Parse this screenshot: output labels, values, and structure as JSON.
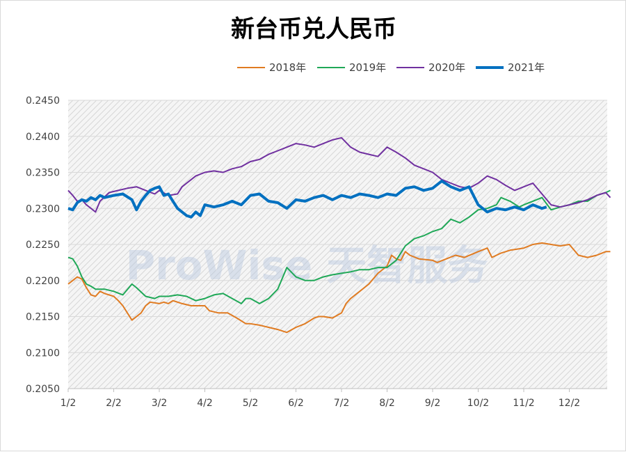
{
  "chart_data": {
    "type": "line",
    "title": "新台币兑人民币",
    "ylim": [
      0.205,
      0.245
    ],
    "y_ticks": [
      "0.2450",
      "0.2400",
      "0.2350",
      "0.2300",
      "0.2250",
      "0.2200",
      "0.2150",
      "0.2100",
      "0.2050"
    ],
    "x_ticks": [
      "1/2",
      "2/2",
      "3/2",
      "4/2",
      "5/2",
      "6/2",
      "7/2",
      "8/2",
      "9/2",
      "10/2",
      "11/2",
      "12/2"
    ],
    "legend_position": "top-right",
    "grid": true,
    "watermark": "ProWise 天智服务",
    "x_range": [
      1,
      12.9
    ],
    "series": [
      {
        "name": "2018年",
        "color": "#e07b21",
        "width": 2,
        "x": [
          1.0,
          1.1,
          1.2,
          1.3,
          1.4,
          1.5,
          1.6,
          1.7,
          1.8,
          2.0,
          2.1,
          2.2,
          2.3,
          2.4,
          2.5,
          2.6,
          2.7,
          2.8,
          3.0,
          3.1,
          3.2,
          3.3,
          3.5,
          3.7,
          4.0,
          4.1,
          4.3,
          4.5,
          4.7,
          4.9,
          5.0,
          5.2,
          5.4,
          5.6,
          5.8,
          6.0,
          6.2,
          6.4,
          6.5,
          6.6,
          6.8,
          7.0,
          7.1,
          7.2,
          7.4,
          7.6,
          7.8,
          8.0,
          8.1,
          8.2,
          8.3,
          8.4,
          8.5,
          8.7,
          9.0,
          9.1,
          9.3,
          9.5,
          9.7,
          10.0,
          10.2,
          10.3,
          10.5,
          10.7,
          11.0,
          11.2,
          11.4,
          11.6,
          11.8,
          12.0,
          12.2,
          12.4,
          12.6,
          12.8,
          12.9
        ],
        "values": [
          0.2195,
          0.22,
          0.2205,
          0.2202,
          0.219,
          0.218,
          0.2178,
          0.2185,
          0.2182,
          0.2178,
          0.2172,
          0.2165,
          0.2155,
          0.2145,
          0.215,
          0.2155,
          0.2165,
          0.217,
          0.2168,
          0.217,
          0.2168,
          0.2172,
          0.2168,
          0.2165,
          0.2165,
          0.2158,
          0.2155,
          0.2155,
          0.2148,
          0.214,
          0.214,
          0.2138,
          0.2135,
          0.2132,
          0.2128,
          0.2135,
          0.214,
          0.2148,
          0.215,
          0.215,
          0.2148,
          0.2155,
          0.2168,
          0.2175,
          0.2185,
          0.2195,
          0.221,
          0.222,
          0.2235,
          0.223,
          0.2228,
          0.224,
          0.2235,
          0.223,
          0.2228,
          0.2225,
          0.223,
          0.2235,
          0.2232,
          0.224,
          0.2245,
          0.2232,
          0.2238,
          0.2242,
          0.2245,
          0.225,
          0.2252,
          0.225,
          0.2248,
          0.225,
          0.2235,
          0.2232,
          0.2235,
          0.224,
          0.224
        ]
      },
      {
        "name": "2019年",
        "color": "#1fa857",
        "width": 2,
        "x": [
          1.0,
          1.1,
          1.2,
          1.3,
          1.4,
          1.5,
          1.6,
          1.8,
          2.0,
          2.2,
          2.4,
          2.5,
          2.7,
          2.9,
          3.0,
          3.2,
          3.4,
          3.6,
          3.8,
          4.0,
          4.2,
          4.4,
          4.6,
          4.8,
          4.9,
          5.0,
          5.2,
          5.4,
          5.6,
          5.8,
          6.0,
          6.2,
          6.4,
          6.6,
          6.8,
          7.0,
          7.2,
          7.4,
          7.6,
          7.8,
          8.0,
          8.2,
          8.4,
          8.6,
          8.8,
          9.0,
          9.2,
          9.4,
          9.6,
          9.8,
          10.0,
          10.2,
          10.4,
          10.5,
          10.7,
          10.9,
          11.0,
          11.2,
          11.4,
          11.6,
          11.8,
          12.0,
          12.2,
          12.4,
          12.6,
          12.8,
          12.9
        ],
        "values": [
          0.2232,
          0.223,
          0.222,
          0.2205,
          0.2195,
          0.2192,
          0.2188,
          0.2188,
          0.2185,
          0.218,
          0.2195,
          0.219,
          0.2178,
          0.2175,
          0.2178,
          0.2178,
          0.218,
          0.2178,
          0.2172,
          0.2175,
          0.218,
          0.2182,
          0.2175,
          0.2168,
          0.2175,
          0.2175,
          0.2168,
          0.2175,
          0.2188,
          0.2218,
          0.2205,
          0.22,
          0.22,
          0.2205,
          0.2208,
          0.221,
          0.2212,
          0.2215,
          0.2215,
          0.2218,
          0.2218,
          0.2228,
          0.2248,
          0.2258,
          0.2262,
          0.2268,
          0.2272,
          0.2285,
          0.228,
          0.2288,
          0.2298,
          0.23,
          0.2305,
          0.2315,
          0.231,
          0.2302,
          0.2305,
          0.231,
          0.2315,
          0.2298,
          0.2302,
          0.2305,
          0.231,
          0.231,
          0.2318,
          0.2322,
          0.2325
        ]
      },
      {
        "name": "2020年",
        "color": "#7030a0",
        "width": 2,
        "x": [
          1.0,
          1.1,
          1.2,
          1.3,
          1.4,
          1.5,
          1.6,
          1.7,
          1.9,
          2.1,
          2.3,
          2.5,
          2.7,
          2.9,
          3.0,
          3.2,
          3.4,
          3.5,
          3.6,
          3.7,
          3.8,
          4.0,
          4.2,
          4.4,
          4.6,
          4.8,
          5.0,
          5.2,
          5.4,
          5.6,
          5.8,
          6.0,
          6.2,
          6.4,
          6.6,
          6.8,
          7.0,
          7.2,
          7.4,
          7.6,
          7.8,
          8.0,
          8.2,
          8.4,
          8.6,
          8.8,
          9.0,
          9.2,
          9.4,
          9.6,
          9.8,
          10.0,
          10.2,
          10.4,
          10.6,
          10.8,
          11.0,
          11.2,
          11.4,
          11.6,
          11.8,
          12.0,
          12.2,
          12.4,
          12.6,
          12.8,
          12.9
        ],
        "values": [
          0.2325,
          0.2318,
          0.231,
          0.2312,
          0.2305,
          0.23,
          0.2295,
          0.231,
          0.2322,
          0.2325,
          0.2328,
          0.233,
          0.2325,
          0.232,
          0.2325,
          0.2318,
          0.232,
          0.233,
          0.2335,
          0.234,
          0.2345,
          0.235,
          0.2352,
          0.235,
          0.2355,
          0.2358,
          0.2365,
          0.2368,
          0.2375,
          0.238,
          0.2385,
          0.239,
          0.2388,
          0.2385,
          0.239,
          0.2395,
          0.2398,
          0.2385,
          0.2378,
          0.2375,
          0.2372,
          0.2385,
          0.2378,
          0.237,
          0.236,
          0.2355,
          0.235,
          0.234,
          0.2335,
          0.233,
          0.2328,
          0.2335,
          0.2345,
          0.234,
          0.2332,
          0.2325,
          0.233,
          0.2335,
          0.232,
          0.2305,
          0.2302,
          0.2305,
          0.2308,
          0.2312,
          0.2318,
          0.2322,
          0.2315
        ]
      },
      {
        "name": "2021年",
        "color": "#0070c0",
        "width": 4,
        "x": [
          1.0,
          1.1,
          1.2,
          1.3,
          1.4,
          1.5,
          1.6,
          1.7,
          1.8,
          2.0,
          2.2,
          2.4,
          2.5,
          2.6,
          2.7,
          2.8,
          2.9,
          3.0,
          3.1,
          3.2,
          3.3,
          3.4,
          3.5,
          3.6,
          3.7,
          3.8,
          3.9,
          4.0,
          4.2,
          4.4,
          4.6,
          4.8,
          5.0,
          5.2,
          5.4,
          5.6,
          5.8,
          6.0,
          6.2,
          6.4,
          6.6,
          6.8,
          7.0,
          7.2,
          7.4,
          7.6,
          7.8,
          8.0,
          8.2,
          8.4,
          8.6,
          8.8,
          9.0,
          9.2,
          9.4,
          9.6,
          9.8,
          10.0,
          10.2,
          10.4,
          10.6,
          10.8,
          11.0,
          11.2,
          11.4,
          11.5
        ],
        "values": [
          0.23,
          0.2298,
          0.2308,
          0.2312,
          0.231,
          0.2315,
          0.2312,
          0.2318,
          0.2315,
          0.2318,
          0.232,
          0.2312,
          0.2298,
          0.231,
          0.2318,
          0.2325,
          0.2328,
          0.233,
          0.2318,
          0.232,
          0.231,
          0.23,
          0.2295,
          0.229,
          0.2288,
          0.2295,
          0.229,
          0.2305,
          0.2302,
          0.2305,
          0.231,
          0.2305,
          0.2318,
          0.232,
          0.231,
          0.2308,
          0.23,
          0.2312,
          0.231,
          0.2315,
          0.2318,
          0.2312,
          0.2318,
          0.2315,
          0.232,
          0.2318,
          0.2315,
          0.232,
          0.2318,
          0.2328,
          0.233,
          0.2325,
          0.2328,
          0.2338,
          0.233,
          0.2325,
          0.233,
          0.2305,
          0.2295,
          0.23,
          0.2298,
          0.2302,
          0.2298,
          0.2305,
          0.23,
          0.2302
        ]
      }
    ]
  }
}
